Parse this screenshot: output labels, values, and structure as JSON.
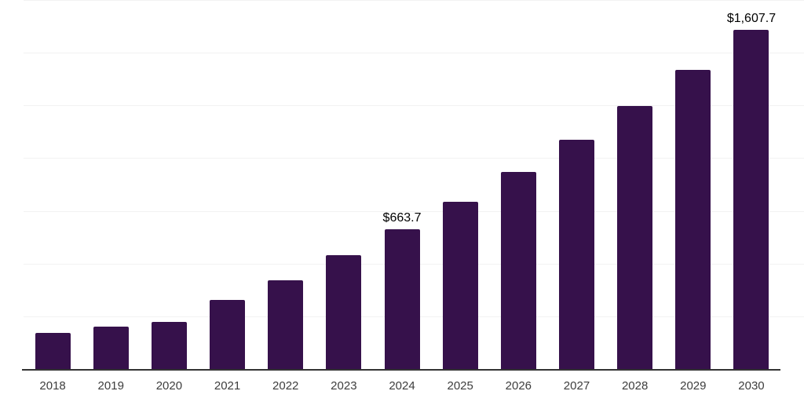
{
  "chart_data": {
    "type": "bar",
    "categories": [
      "2018",
      "2019",
      "2020",
      "2021",
      "2022",
      "2023",
      "2024",
      "2025",
      "2026",
      "2027",
      "2028",
      "2029",
      "2030"
    ],
    "values": [
      171,
      200,
      223,
      328,
      421,
      540,
      663.7,
      793,
      935,
      1087,
      1247,
      1419,
      1607.7
    ],
    "point_labels": {
      "2024": "$663.7",
      "2030": "$1,607.7"
    },
    "ylim": [
      0,
      1750
    ],
    "gridline_step": 250,
    "grid": true,
    "legend_position": "none",
    "colors": {
      "bar": "#36114b",
      "grid": "#f2f2f2",
      "axis": "#333333",
      "data_label": "#000000",
      "tick_label": "#3d3d3d"
    }
  }
}
